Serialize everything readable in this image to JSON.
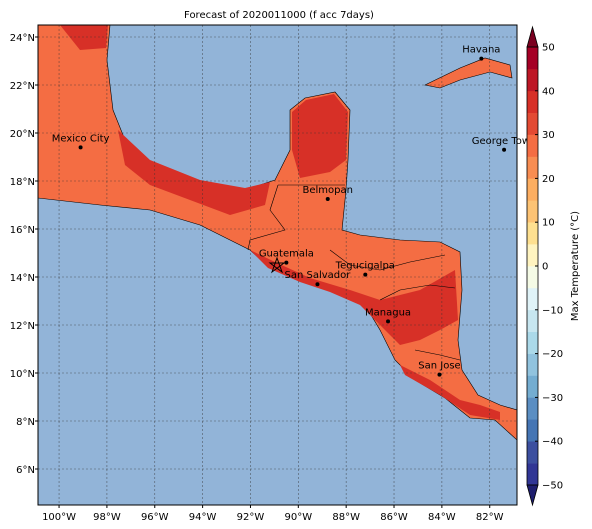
{
  "map": {
    "title": "Forecast of 2020011000 (f acc 7days)",
    "xlim": [
      -100.88,
      -80.86
    ],
    "ylim": [
      4.5,
      24.5
    ],
    "xticks": [
      {
        "value": -100,
        "label": "100°W"
      },
      {
        "value": -98,
        "label": "98°W"
      },
      {
        "value": -96,
        "label": "96°W"
      },
      {
        "value": -94,
        "label": "94°W"
      },
      {
        "value": -92,
        "label": "92°W"
      },
      {
        "value": -90,
        "label": "90°W"
      },
      {
        "value": -88,
        "label": "88°W"
      },
      {
        "value": -86,
        "label": "86°W"
      },
      {
        "value": -84,
        "label": "84°W"
      },
      {
        "value": -82,
        "label": "82°W"
      }
    ],
    "yticks": [
      {
        "value": 6,
        "label": "6°N"
      },
      {
        "value": 8,
        "label": "8°N"
      },
      {
        "value": 10,
        "label": "10°N"
      },
      {
        "value": 12,
        "label": "12°N"
      },
      {
        "value": 14,
        "label": "14°N"
      },
      {
        "value": 16,
        "label": "16°N"
      },
      {
        "value": 18,
        "label": "18°N"
      },
      {
        "value": 20,
        "label": "20°N"
      },
      {
        "value": 22,
        "label": "22°N"
      },
      {
        "value": 24,
        "label": "24°N"
      }
    ],
    "cities": [
      {
        "name": "Havana",
        "lon": -82.35,
        "lat": 23.1
      },
      {
        "name": "Mexico City",
        "lon": -99.1,
        "lat": 19.4
      },
      {
        "name": "George Town",
        "lon": -81.4,
        "lat": 19.3
      },
      {
        "name": "Belmopan",
        "lon": -88.77,
        "lat": 17.25
      },
      {
        "name": "Guatemala",
        "lon": -90.5,
        "lat": 14.6
      },
      {
        "name": "San Salvador",
        "lon": -89.2,
        "lat": 13.7
      },
      {
        "name": "Tegucigalpa",
        "lon": -87.2,
        "lat": 14.1
      },
      {
        "name": "Managua",
        "lon": -86.25,
        "lat": 12.15
      },
      {
        "name": "San Jose",
        "lon": -84.1,
        "lat": 9.93
      }
    ],
    "colorbar": {
      "label": "Max Temperature (°C)",
      "lim": [
        -50,
        50
      ],
      "ticks": [
        {
          "value": -50,
          "label": "−50"
        },
        {
          "value": -40,
          "label": "−40"
        },
        {
          "value": -30,
          "label": "−30"
        },
        {
          "value": -20,
          "label": "−20"
        },
        {
          "value": -10,
          "label": "−10"
        },
        0,
        10,
        20,
        30,
        40,
        50
      ],
      "colors": [
        "#313695",
        "#3c4f9f",
        "#4575b4",
        "#5b8ec2",
        "#74add1",
        "#91c3de",
        "#abd9e9",
        "#c7e6f0",
        "#e0f3f8",
        "#f5fbe6",
        "#fff4c0",
        "#fee090",
        "#fdc374",
        "#fdae61",
        "#f88d52",
        "#f46d43",
        "#e34a33",
        "#d73027",
        "#bd1726",
        "#a50026"
      ],
      "under": "#1e1e6e",
      "over": "#7a0020"
    }
  }
}
